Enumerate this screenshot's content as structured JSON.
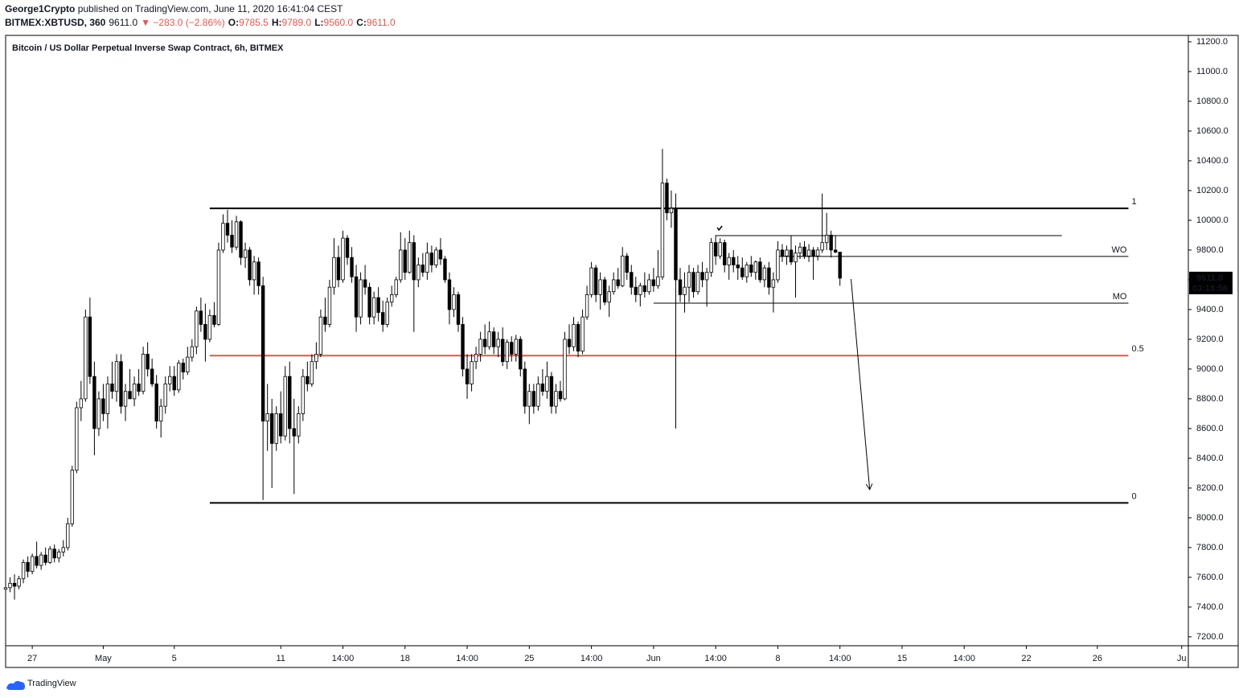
{
  "chart_data": {
    "type": "candlestick",
    "author": "George1Crypto",
    "published": " published on TradingView.com, June 11, 2020 16:41:04 CEST",
    "symbol": "BITMEX:XBTUSD, 360",
    "last": "9611.0",
    "change": "▼ −283.0 (−2.86%)",
    "ohlc_labels": [
      [
        "O:",
        "9785.5"
      ],
      [
        "H:",
        "9789.0"
      ],
      [
        "L:",
        "9560.0"
      ],
      [
        "C:",
        "9611.0"
      ]
    ],
    "title": "Bitcoin / US Dollar Perpetual Inverse Swap Contract, 6h, BITMEX",
    "price_tag": {
      "value": 9611,
      "label": "9611.0",
      "countdown": "03:18:58"
    },
    "watermark": "TradingView",
    "up_color": "#ffffff",
    "down_color": "#000000",
    "xlim": [
      0,
      266.5
    ],
    "xticks": [
      {
        "value": 6,
        "label": "27"
      },
      {
        "value": 22,
        "label": "May"
      },
      {
        "value": 38,
        "label": "5"
      },
      {
        "value": 62,
        "label": "11"
      },
      {
        "value": 76,
        "label": "14:00"
      },
      {
        "value": 90,
        "label": "18"
      },
      {
        "value": 104,
        "label": "14:00"
      },
      {
        "value": 118,
        "label": "25"
      },
      {
        "value": 132,
        "label": "14:00"
      },
      {
        "value": 146,
        "label": "Jun"
      },
      {
        "value": 160,
        "label": "14:00"
      },
      {
        "value": 174,
        "label": "8"
      },
      {
        "value": 188,
        "label": "14:00"
      },
      {
        "value": 202,
        "label": "15"
      },
      {
        "value": 216,
        "label": "14:00"
      },
      {
        "value": 230,
        "label": "22"
      },
      {
        "value": 246,
        "label": "26"
      },
      {
        "value": 265,
        "label": "Ju"
      }
    ],
    "ylim": [
      7140,
      11243
    ],
    "yticks": [
      {
        "value": 7200,
        "label": "7200.0"
      },
      {
        "value": 7400,
        "label": "7400.0"
      },
      {
        "value": 7600,
        "label": "7600.0"
      },
      {
        "value": 7800,
        "label": "7800.0"
      },
      {
        "value": 8000,
        "label": "8000.0"
      },
      {
        "value": 8200,
        "label": "8200.0"
      },
      {
        "value": 8400,
        "label": "8400.0"
      },
      {
        "value": 8600,
        "label": "8600.0"
      },
      {
        "value": 8800,
        "label": "8800.0"
      },
      {
        "value": 9000,
        "label": "9000.0"
      },
      {
        "value": 9200,
        "label": "9200.0"
      },
      {
        "value": 9400,
        "label": "9400.0"
      },
      {
        "value": 9600,
        "label": "9600.0"
      },
      {
        "value": 9800,
        "label": "9800.0"
      },
      {
        "value": 10000,
        "label": "10000.0"
      },
      {
        "value": 10200,
        "label": "10200.0"
      },
      {
        "value": 10400,
        "label": "10400.0"
      },
      {
        "value": 10600,
        "label": "10600.0"
      },
      {
        "value": 10800,
        "label": "10800.0"
      },
      {
        "value": 11000,
        "label": "11000.0"
      },
      {
        "value": 11200,
        "label": "11200.0"
      }
    ],
    "fib": {
      "from": 46,
      "to": 253,
      "levels": [
        {
          "label": "1",
          "value": 10080,
          "color": "#000000",
          "label_color": "#777777"
        },
        {
          "label": "0.5",
          "value": 9090,
          "color": "#e0574f",
          "label_color": "#e0574f"
        },
        {
          "label": "0",
          "value": 8100,
          "color": "#000000",
          "label_color": "#777777"
        }
      ]
    },
    "hlines": [
      {
        "label": "WO",
        "value": 9757,
        "from": 174,
        "to": 253
      },
      {
        "label": "MO",
        "value": 9443,
        "from": 146,
        "to": 253
      },
      {
        "value": 9897,
        "from": 160,
        "to": 238
      }
    ],
    "arrow": {
      "from": [
        190.5,
        9605
      ],
      "to": [
        194.7,
        8190
      ]
    },
    "candles": [
      [
        7520,
        7560,
        7480,
        7530
      ],
      [
        7530,
        7600,
        7500,
        7560
      ],
      [
        7560,
        7620,
        7450,
        7540
      ],
      [
        7540,
        7610,
        7520,
        7590
      ],
      [
        7590,
        7720,
        7560,
        7700
      ],
      [
        7700,
        7740,
        7600,
        7640
      ],
      [
        7640,
        7760,
        7620,
        7740
      ],
      [
        7740,
        7840,
        7660,
        7680
      ],
      [
        7680,
        7770,
        7650,
        7750
      ],
      [
        7750,
        7800,
        7680,
        7700
      ],
      [
        7700,
        7810,
        7690,
        7790
      ],
      [
        7790,
        7820,
        7700,
        7730
      ],
      [
        7730,
        7790,
        7700,
        7770
      ],
      [
        7770,
        7850,
        7740,
        7800
      ],
      [
        7800,
        8000,
        7780,
        7960
      ],
      [
        7960,
        8350,
        7940,
        8320
      ],
      [
        8320,
        8780,
        8300,
        8740
      ],
      [
        8740,
        8920,
        8650,
        8800
      ],
      [
        8800,
        9400,
        8780,
        9350
      ],
      [
        9350,
        9480,
        8900,
        8950
      ],
      [
        8950,
        9050,
        8420,
        8600
      ],
      [
        8600,
        8850,
        8550,
        8800
      ],
      [
        8800,
        8900,
        8650,
        8700
      ],
      [
        8700,
        8950,
        8600,
        8900
      ],
      [
        8900,
        9050,
        8800,
        8850
      ],
      [
        8850,
        9100,
        8780,
        9050
      ],
      [
        9050,
        9100,
        8700,
        8750
      ],
      [
        8750,
        8900,
        8650,
        8850
      ],
      [
        8850,
        9000,
        8800,
        8800
      ],
      [
        8800,
        8950,
        8750,
        8900
      ],
      [
        8900,
        9000,
        8820,
        8850
      ],
      [
        8850,
        9150,
        8830,
        9100
      ],
      [
        9100,
        9180,
        8950,
        9000
      ],
      [
        9000,
        9070,
        8880,
        8900
      ],
      [
        8900,
        8960,
        8600,
        8650
      ],
      [
        8650,
        8800,
        8540,
        8750
      ],
      [
        8750,
        8950,
        8700,
        8900
      ],
      [
        8900,
        9020,
        8850,
        8950
      ],
      [
        8950,
        9020,
        8820,
        8860
      ],
      [
        8860,
        9060,
        8840,
        9040
      ],
      [
        9040,
        9070,
        8930,
        8980
      ],
      [
        8980,
        9150,
        8960,
        9080
      ],
      [
        9080,
        9200,
        9050,
        9150
      ],
      [
        9150,
        9420,
        9100,
        9390
      ],
      [
        9390,
        9480,
        9250,
        9300
      ],
      [
        9300,
        9440,
        9050,
        9200
      ],
      [
        9200,
        9400,
        9180,
        9360
      ],
      [
        9360,
        9450,
        9280,
        9300
      ],
      [
        9300,
        9850,
        9290,
        9800
      ],
      [
        9800,
        10040,
        9780,
        9980
      ],
      [
        9980,
        10070,
        9850,
        9900
      ],
      [
        9900,
        10000,
        9780,
        9820
      ],
      [
        9820,
        10030,
        9800,
        9990
      ],
      [
        9990,
        10000,
        9700,
        9750
      ],
      [
        9750,
        9850,
        9680,
        9800
      ],
      [
        9800,
        9820,
        9560,
        9600
      ],
      [
        9600,
        9760,
        9500,
        9720
      ],
      [
        9720,
        9750,
        9500,
        9560
      ],
      [
        9560,
        9620,
        8120,
        8650
      ],
      [
        8650,
        8900,
        8450,
        8700
      ],
      [
        8700,
        8800,
        8200,
        8500
      ],
      [
        8500,
        8750,
        8450,
        8700
      ],
      [
        8700,
        8850,
        8500,
        8550
      ],
      [
        8550,
        9020,
        8520,
        8950
      ],
      [
        8950,
        9050,
        8500,
        8600
      ],
      [
        8600,
        8800,
        8160,
        8550
      ],
      [
        8550,
        8750,
        8500,
        8700
      ],
      [
        8700,
        9000,
        8650,
        8950
      ],
      [
        8950,
        9050,
        8850,
        8900
      ],
      [
        8900,
        9100,
        8880,
        9050
      ],
      [
        9050,
        9180,
        9000,
        9100
      ],
      [
        9100,
        9400,
        9080,
        9350
      ],
      [
        9350,
        9480,
        9250,
        9300
      ],
      [
        9300,
        9600,
        9280,
        9550
      ],
      [
        9550,
        9880,
        9500,
        9750
      ],
      [
        9750,
        9830,
        9550,
        9600
      ],
      [
        9600,
        9930,
        9580,
        9880
      ],
      [
        9880,
        9900,
        9700,
        9750
      ],
      [
        9750,
        9820,
        9580,
        9620
      ],
      [
        9620,
        9700,
        9250,
        9350
      ],
      [
        9350,
        9650,
        9300,
        9600
      ],
      [
        9600,
        9700,
        9500,
        9550
      ],
      [
        9550,
        9580,
        9300,
        9350
      ],
      [
        9350,
        9520,
        9300,
        9480
      ],
      [
        9480,
        9550,
        9320,
        9380
      ],
      [
        9380,
        9460,
        9250,
        9300
      ],
      [
        9300,
        9480,
        9280,
        9450
      ],
      [
        9450,
        9560,
        9420,
        9500
      ],
      [
        9500,
        9620,
        9480,
        9600
      ],
      [
        9600,
        9920,
        9580,
        9800
      ],
      [
        9800,
        9880,
        9600,
        9650
      ],
      [
        9650,
        9930,
        9640,
        9850
      ],
      [
        9850,
        9900,
        9250,
        9600
      ],
      [
        9600,
        9750,
        9550,
        9700
      ],
      [
        9700,
        9780,
        9620,
        9650
      ],
      [
        9650,
        9850,
        9600,
        9780
      ],
      [
        9780,
        9830,
        9650,
        9700
      ],
      [
        9700,
        9820,
        9680,
        9800
      ],
      [
        9800,
        9880,
        9700,
        9740
      ],
      [
        9740,
        9760,
        9580,
        9600
      ],
      [
        9600,
        9650,
        9300,
        9400
      ],
      [
        9400,
        9550,
        9350,
        9500
      ],
      [
        9500,
        9520,
        9250,
        9300
      ],
      [
        9300,
        9350,
        8950,
        9000
      ],
      [
        9000,
        9100,
        8800,
        8900
      ],
      [
        8900,
        9100,
        8850,
        9050
      ],
      [
        9050,
        9150,
        9000,
        9100
      ],
      [
        9100,
        9250,
        9050,
        9200
      ],
      [
        9200,
        9300,
        9100,
        9150
      ],
      [
        9150,
        9320,
        9130,
        9250
      ],
      [
        9250,
        9280,
        9100,
        9150
      ],
      [
        9150,
        9250,
        9080,
        9200
      ],
      [
        9200,
        9280,
        9020,
        9050
      ],
      [
        9050,
        9200,
        9000,
        9180
      ],
      [
        9180,
        9220,
        9050,
        9100
      ],
      [
        9100,
        9230,
        9050,
        9200
      ],
      [
        9200,
        9220,
        8950,
        9000
      ],
      [
        9000,
        9050,
        8700,
        8750
      ],
      [
        8750,
        8900,
        8630,
        8850
      ],
      [
        8850,
        8900,
        8700,
        8750
      ],
      [
        8750,
        8950,
        8720,
        8900
      ],
      [
        8900,
        9000,
        8820,
        8850
      ],
      [
        8850,
        9050,
        8800,
        8950
      ],
      [
        8950,
        8980,
        8700,
        8750
      ],
      [
        8750,
        8900,
        8700,
        8850
      ],
      [
        8850,
        8920,
        8780,
        8800
      ],
      [
        8800,
        9250,
        8790,
        9200
      ],
      [
        9200,
        9300,
        9100,
        9150
      ],
      [
        9150,
        9350,
        9120,
        9300
      ],
      [
        9300,
        9320,
        9080,
        9120
      ],
      [
        9120,
        9400,
        9100,
        9350
      ],
      [
        9350,
        9560,
        9330,
        9500
      ],
      [
        9500,
        9720,
        9480,
        9680
      ],
      [
        9680,
        9700,
        9450,
        9500
      ],
      [
        9500,
        9650,
        9400,
        9600
      ],
      [
        9600,
        9620,
        9430,
        9450
      ],
      [
        9450,
        9560,
        9350,
        9520
      ],
      [
        9520,
        9650,
        9500,
        9600
      ],
      [
        9600,
        9680,
        9540,
        9560
      ],
      [
        9560,
        9820,
        9550,
        9760
      ],
      [
        9760,
        9780,
        9600,
        9650
      ],
      [
        9650,
        9700,
        9500,
        9550
      ],
      [
        9550,
        9620,
        9450,
        9500
      ],
      [
        9500,
        9580,
        9420,
        9560
      ],
      [
        9560,
        9650,
        9480,
        9520
      ],
      [
        9520,
        9640,
        9500,
        9600
      ],
      [
        9600,
        9680,
        9520,
        9560
      ],
      [
        9560,
        9800,
        9540,
        9620
      ],
      [
        9620,
        10480,
        9600,
        10250
      ],
      [
        10250,
        10280,
        10000,
        10050
      ],
      [
        10050,
        10200,
        9950,
        10080
      ],
      [
        10080,
        10180,
        8600,
        9600
      ],
      [
        9600,
        9680,
        9450,
        9500
      ],
      [
        9500,
        9650,
        9380,
        9550
      ],
      [
        9550,
        9700,
        9450,
        9650
      ],
      [
        9650,
        9680,
        9480,
        9520
      ],
      [
        9520,
        9700,
        9500,
        9650
      ],
      [
        9650,
        9720,
        9550,
        9600
      ],
      [
        9600,
        9680,
        9420,
        9650
      ],
      [
        9650,
        9880,
        9620,
        9850
      ],
      [
        9850,
        9900,
        9700,
        9760
      ],
      [
        9760,
        9880,
        9740,
        9850
      ],
      [
        9850,
        9870,
        9650,
        9700
      ],
      [
        9700,
        9780,
        9600,
        9750
      ],
      [
        9750,
        9800,
        9650,
        9700
      ],
      [
        9700,
        9760,
        9600,
        9680
      ],
      [
        9680,
        9750,
        9600,
        9620
      ],
      [
        9620,
        9720,
        9580,
        9700
      ],
      [
        9700,
        9760,
        9620,
        9650
      ],
      [
        9650,
        9730,
        9600,
        9720
      ],
      [
        9720,
        9750,
        9580,
        9600
      ],
      [
        9600,
        9700,
        9550,
        9680
      ],
      [
        9680,
        9720,
        9500,
        9550
      ],
      [
        9550,
        9650,
        9380,
        9600
      ],
      [
        9600,
        9860,
        9580,
        9800
      ],
      [
        9800,
        9840,
        9720,
        9760
      ],
      [
        9760,
        9830,
        9700,
        9800
      ],
      [
        9800,
        9900,
        9700,
        9720
      ],
      [
        9720,
        9830,
        9480,
        9780
      ],
      [
        9780,
        9850,
        9740,
        9820
      ],
      [
        9820,
        9860,
        9740,
        9760
      ],
      [
        9760,
        9840,
        9720,
        9800
      ],
      [
        9800,
        9820,
        9600,
        9760
      ],
      [
        9760,
        9820,
        9730,
        9800
      ],
      [
        9800,
        10180,
        9780,
        9850
      ],
      [
        9850,
        10050,
        9800,
        9900
      ],
      [
        9900,
        9930,
        9750,
        9800
      ],
      [
        9800,
        9900,
        9780,
        9785.5
      ],
      [
        9785.5,
        9789,
        9560,
        9611
      ]
    ]
  }
}
